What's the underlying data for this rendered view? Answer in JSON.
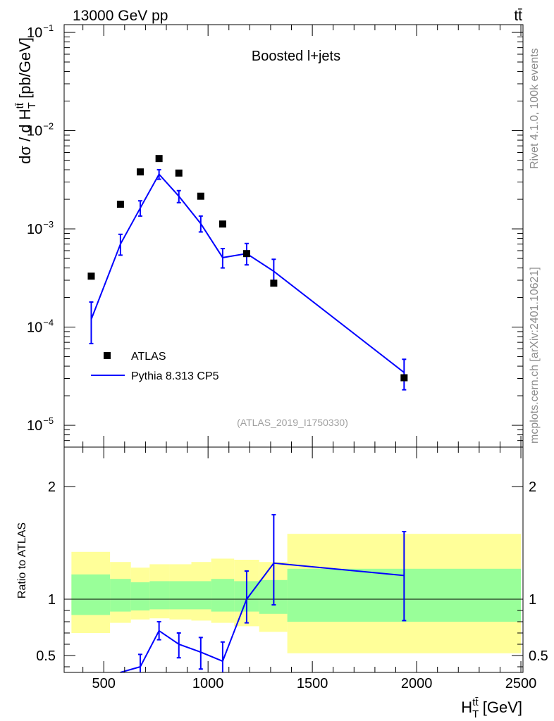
{
  "header": {
    "energy_label": "13000 GeV pp",
    "process_label": "tt̄"
  },
  "side_text": {
    "rivet": "Rivet 4.1.0,  100k events",
    "mcplots": "mcplots.cern.ch [arXiv:2401.10621]"
  },
  "chart_data": [
    {
      "type": "line",
      "panel": "main",
      "title": "Boosted l+jets",
      "analysis_ref": "(ATLAS_2019_I1750330)",
      "ylabel": "dσ / d H_T^{tt̄} [pb/GeV]",
      "yscale": "log",
      "ylim": [
        6e-06,
        0.12
      ],
      "xlim": [
        310,
        2510
      ],
      "ytick_labels": [
        {
          "base": "10",
          "exp": "−1",
          "value": 0.1
        },
        {
          "base": "10",
          "exp": "−2",
          "value": 0.01
        },
        {
          "base": "10",
          "exp": "−3",
          "value": 0.001
        },
        {
          "base": "10",
          "exp": "−4",
          "value": 0.0001
        },
        {
          "base": "10",
          "exp": "−5",
          "value": 1e-05
        }
      ],
      "legend": {
        "position": "lower-left",
        "entries": [
          "ATLAS",
          "Pythia 8.313 CP5"
        ]
      },
      "series": [
        {
          "name": "ATLAS",
          "style": "markers",
          "color": "#000000",
          "points": [
            {
              "x": 440,
              "y": 0.00033
            },
            {
              "x": 580,
              "y": 0.00178
            },
            {
              "x": 675,
              "y": 0.0038
            },
            {
              "x": 765,
              "y": 0.0052
            },
            {
              "x": 860,
              "y": 0.0037
            },
            {
              "x": 965,
              "y": 0.00215
            },
            {
              "x": 1070,
              "y": 0.00112
            },
            {
              "x": 1185,
              "y": 0.00056
            },
            {
              "x": 1315,
              "y": 0.00028
            },
            {
              "x": 1940,
              "y": 3.05e-05
            }
          ]
        },
        {
          "name": "Pythia 8.313 CP5",
          "style": "line",
          "color": "#0000ff",
          "points": [
            {
              "x": 440,
              "y": 0.00012,
              "lo": 6.8e-05,
              "hi": 0.00018
            },
            {
              "x": 580,
              "y": 0.0007,
              "lo": 0.00054,
              "hi": 0.00088
            },
            {
              "x": 675,
              "y": 0.00163,
              "lo": 0.00135,
              "hi": 0.00193
            },
            {
              "x": 765,
              "y": 0.0036,
              "lo": 0.0032,
              "hi": 0.004
            },
            {
              "x": 860,
              "y": 0.00215,
              "lo": 0.00185,
              "hi": 0.00245
            },
            {
              "x": 965,
              "y": 0.00113,
              "lo": 0.00093,
              "hi": 0.00135
            },
            {
              "x": 1070,
              "y": 0.00051,
              "lo": 0.0004,
              "hi": 0.00063
            },
            {
              "x": 1185,
              "y": 0.00056,
              "lo": 0.00043,
              "hi": 0.00071
            },
            {
              "x": 1315,
              "y": 0.00037,
              "lo": 0.00027,
              "hi": 0.00049
            },
            {
              "x": 1940,
              "y": 3.45e-05,
              "lo": 2.3e-05,
              "hi": 4.7e-05
            }
          ]
        }
      ]
    },
    {
      "type": "line",
      "panel": "ratio",
      "ylabel": "Ratio to ATLAS",
      "xlabel": "H_T^{tt̄} [GeV]",
      "ylim": [
        0.35,
        2.35
      ],
      "xlim": [
        310,
        2510
      ],
      "xtick_labels": [
        "500",
        "1000",
        "1500",
        "2000",
        "2500"
      ],
      "xticks": [
        500,
        1000,
        1500,
        2000,
        2500
      ],
      "ytick_labels": [
        "0.5",
        "1",
        "2"
      ],
      "yticks": [
        0.5,
        1,
        2
      ],
      "reference_line": 1,
      "uncertainty_bands": {
        "stat_color": "#99ff99",
        "total_color": "#ffff99",
        "bins": [
          {
            "x0": 345,
            "x1": 530,
            "tlo": 0.7,
            "thi": 1.42,
            "slo": 0.86,
            "shi": 1.22
          },
          {
            "x0": 530,
            "x1": 630,
            "tlo": 0.79,
            "thi": 1.33,
            "slo": 0.89,
            "shi": 1.18
          },
          {
            "x0": 630,
            "x1": 720,
            "tlo": 0.82,
            "thi": 1.28,
            "slo": 0.9,
            "shi": 1.15
          },
          {
            "x0": 720,
            "x1": 815,
            "tlo": 0.83,
            "thi": 1.31,
            "slo": 0.91,
            "shi": 1.16
          },
          {
            "x0": 815,
            "x1": 920,
            "tlo": 0.82,
            "thi": 1.31,
            "slo": 0.91,
            "shi": 1.16
          },
          {
            "x0": 920,
            "x1": 1015,
            "tlo": 0.81,
            "thi": 1.33,
            "slo": 0.91,
            "shi": 1.16
          },
          {
            "x0": 1015,
            "x1": 1125,
            "tlo": 0.79,
            "thi": 1.36,
            "slo": 0.89,
            "shi": 1.18
          },
          {
            "x0": 1125,
            "x1": 1245,
            "tlo": 0.76,
            "thi": 1.35,
            "slo": 0.89,
            "shi": 1.16
          },
          {
            "x0": 1245,
            "x1": 1380,
            "tlo": 0.71,
            "thi": 1.33,
            "slo": 0.87,
            "shi": 1.17
          },
          {
            "x0": 1380,
            "x1": 2500,
            "tlo": 0.52,
            "thi": 1.58,
            "slo": 0.8,
            "shi": 1.27
          }
        ]
      },
      "series": [
        {
          "name": "Pythia 8.313 CP5",
          "color": "#0000ff",
          "points": [
            {
              "x": 580,
              "y": 0.35,
              "lo": 0.35,
              "hi": 0.35
            },
            {
              "x": 675,
              "y": 0.4,
              "lo": 0.35,
              "hi": 0.51
            },
            {
              "x": 765,
              "y": 0.72,
              "lo": 0.64,
              "hi": 0.8
            },
            {
              "x": 860,
              "y": 0.6,
              "lo": 0.48,
              "hi": 0.7
            },
            {
              "x": 965,
              "y": 0.53,
              "lo": 0.38,
              "hi": 0.66
            },
            {
              "x": 1070,
              "y": 0.45,
              "lo": 0.35,
              "hi": 0.62
            },
            {
              "x": 1185,
              "y": 1.0,
              "lo": 0.79,
              "hi": 1.25
            },
            {
              "x": 1315,
              "y": 1.32,
              "lo": 0.95,
              "hi": 1.75
            },
            {
              "x": 1940,
              "y": 1.21,
              "lo": 0.81,
              "hi": 1.6
            }
          ]
        }
      ]
    }
  ]
}
